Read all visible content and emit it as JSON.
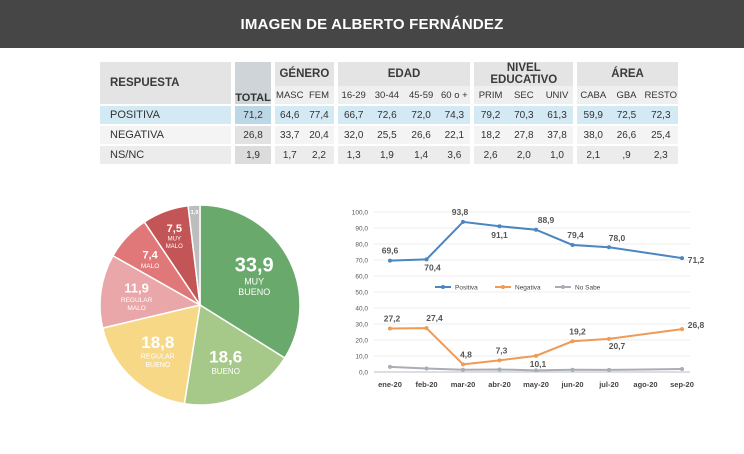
{
  "header": {
    "title": "IMAGEN DE ALBERTO FERNÁNDEZ"
  },
  "table": {
    "respuesta_label": "RESPUESTA",
    "total_label": "TOTAL",
    "groups": [
      {
        "label": "GÉNERO",
        "cols": [
          "MASC",
          "FEM"
        ]
      },
      {
        "label": "EDAD",
        "cols": [
          "16-29",
          "30-44",
          "45-59",
          "60 o +"
        ]
      },
      {
        "label": "NIVEL EDUCATIVO",
        "cols": [
          "PRIM",
          "SEC",
          "UNIV"
        ]
      },
      {
        "label": "ÁREA",
        "cols": [
          "CABA",
          "GBA",
          "RESTO"
        ]
      }
    ],
    "rows": [
      {
        "label": "POSITIVA",
        "total": "71,2",
        "values": [
          "64,6",
          "77,4",
          "66,7",
          "72,6",
          "72,0",
          "74,3",
          "79,2",
          "70,3",
          "61,3",
          "59,9",
          "72,5",
          "72,3"
        ]
      },
      {
        "label": "NEGATIVA",
        "total": "26,8",
        "values": [
          "33,7",
          "20,4",
          "32,0",
          "25,5",
          "26,6",
          "22,1",
          "18,2",
          "27,8",
          "37,8",
          "38,0",
          "26,6",
          "25,4"
        ]
      },
      {
        "label": "NS/NC",
        "total": "1,9",
        "values": [
          "1,7",
          "2,2",
          "1,3",
          "1,9",
          "1,4",
          "3,6",
          "2,6",
          "2,0",
          "1,0",
          "2,1",
          ",9",
          "2,3"
        ]
      }
    ]
  },
  "chart_data": [
    {
      "type": "pie",
      "slices": [
        {
          "label": "MUY BUENO",
          "value": 33.9,
          "value_label": "33,9",
          "color": "#6aa96c"
        },
        {
          "label": "BUENO",
          "value": 18.6,
          "value_label": "18,6",
          "color": "#a6c98a"
        },
        {
          "label": "REGULAR BUENO",
          "value": 18.8,
          "value_label": "18,8",
          "color": "#f7d886"
        },
        {
          "label": "REGULAR MALO",
          "value": 11.9,
          "value_label": "11,9",
          "color": "#e9a7a9"
        },
        {
          "label": "MALO",
          "value": 7.4,
          "value_label": "7,4",
          "color": "#e07778"
        },
        {
          "label": "MUY MALO",
          "value": 7.5,
          "value_label": "7,5",
          "color": "#c45556"
        },
        {
          "label": "",
          "value": 1.9,
          "value_label": "1,9",
          "color": "#bdbdbd"
        }
      ]
    },
    {
      "type": "line",
      "x": [
        "ene-20",
        "feb-20",
        "mar-20",
        "abr-20",
        "may-20",
        "jun-20",
        "jul-20",
        "ago-20",
        "sep-20"
      ],
      "ylim": [
        0,
        100
      ],
      "yticks": [
        "0,0",
        "10,0",
        "20,0",
        "30,0",
        "40,0",
        "50,0",
        "60,0",
        "70,0",
        "80,0",
        "90,0",
        "100,0"
      ],
      "legend_position": "middle",
      "series": [
        {
          "name": "Positiva",
          "color": "#4a86c0",
          "points": [
            {
              "x": "ene-20",
              "y": 69.6,
              "label": "69,6"
            },
            {
              "x": "feb-20",
              "y": 70.4,
              "label": "70,4"
            },
            {
              "x": "mar-20",
              "y": 93.8,
              "label": "93,8"
            },
            {
              "x": "abr-20",
              "y": 91.1,
              "label": "91,1"
            },
            {
              "x": "may-20",
              "y": 88.9,
              "label": "88,9"
            },
            {
              "x": "jun-20",
              "y": 79.4,
              "label": "79,4"
            },
            {
              "x": "jul-20",
              "y": 78.0,
              "label": "78,0"
            },
            {
              "x": "sep-20",
              "y": 71.2,
              "label": "71,2"
            }
          ]
        },
        {
          "name": "Negativa",
          "color": "#ef9a55",
          "points": [
            {
              "x": "ene-20",
              "y": 27.2,
              "label": "27,2"
            },
            {
              "x": "feb-20",
              "y": 27.4,
              "label": "27,4"
            },
            {
              "x": "mar-20",
              "y": 4.8,
              "label": "4,8"
            },
            {
              "x": "abr-20",
              "y": 7.3,
              "label": "7,3"
            },
            {
              "x": "may-20",
              "y": 10.1,
              "label": "10,1"
            },
            {
              "x": "jun-20",
              "y": 19.2,
              "label": "19,2"
            },
            {
              "x": "jul-20",
              "y": 20.7,
              "label": "20,7"
            },
            {
              "x": "sep-20",
              "y": 26.8,
              "label": "26,8"
            }
          ]
        },
        {
          "name": "No Sabe",
          "color": "#a9adb5",
          "points": [
            {
              "x": "ene-20",
              "y": 3.2,
              "label": ""
            },
            {
              "x": "feb-20",
              "y": 2.2,
              "label": ""
            },
            {
              "x": "mar-20",
              "y": 1.4,
              "label": ""
            },
            {
              "x": "abr-20",
              "y": 1.6,
              "label": ""
            },
            {
              "x": "may-20",
              "y": 1.0,
              "label": ""
            },
            {
              "x": "jun-20",
              "y": 1.4,
              "label": ""
            },
            {
              "x": "jul-20",
              "y": 1.3,
              "label": ""
            },
            {
              "x": "sep-20",
              "y": 1.9,
              "label": ""
            }
          ]
        }
      ]
    }
  ]
}
